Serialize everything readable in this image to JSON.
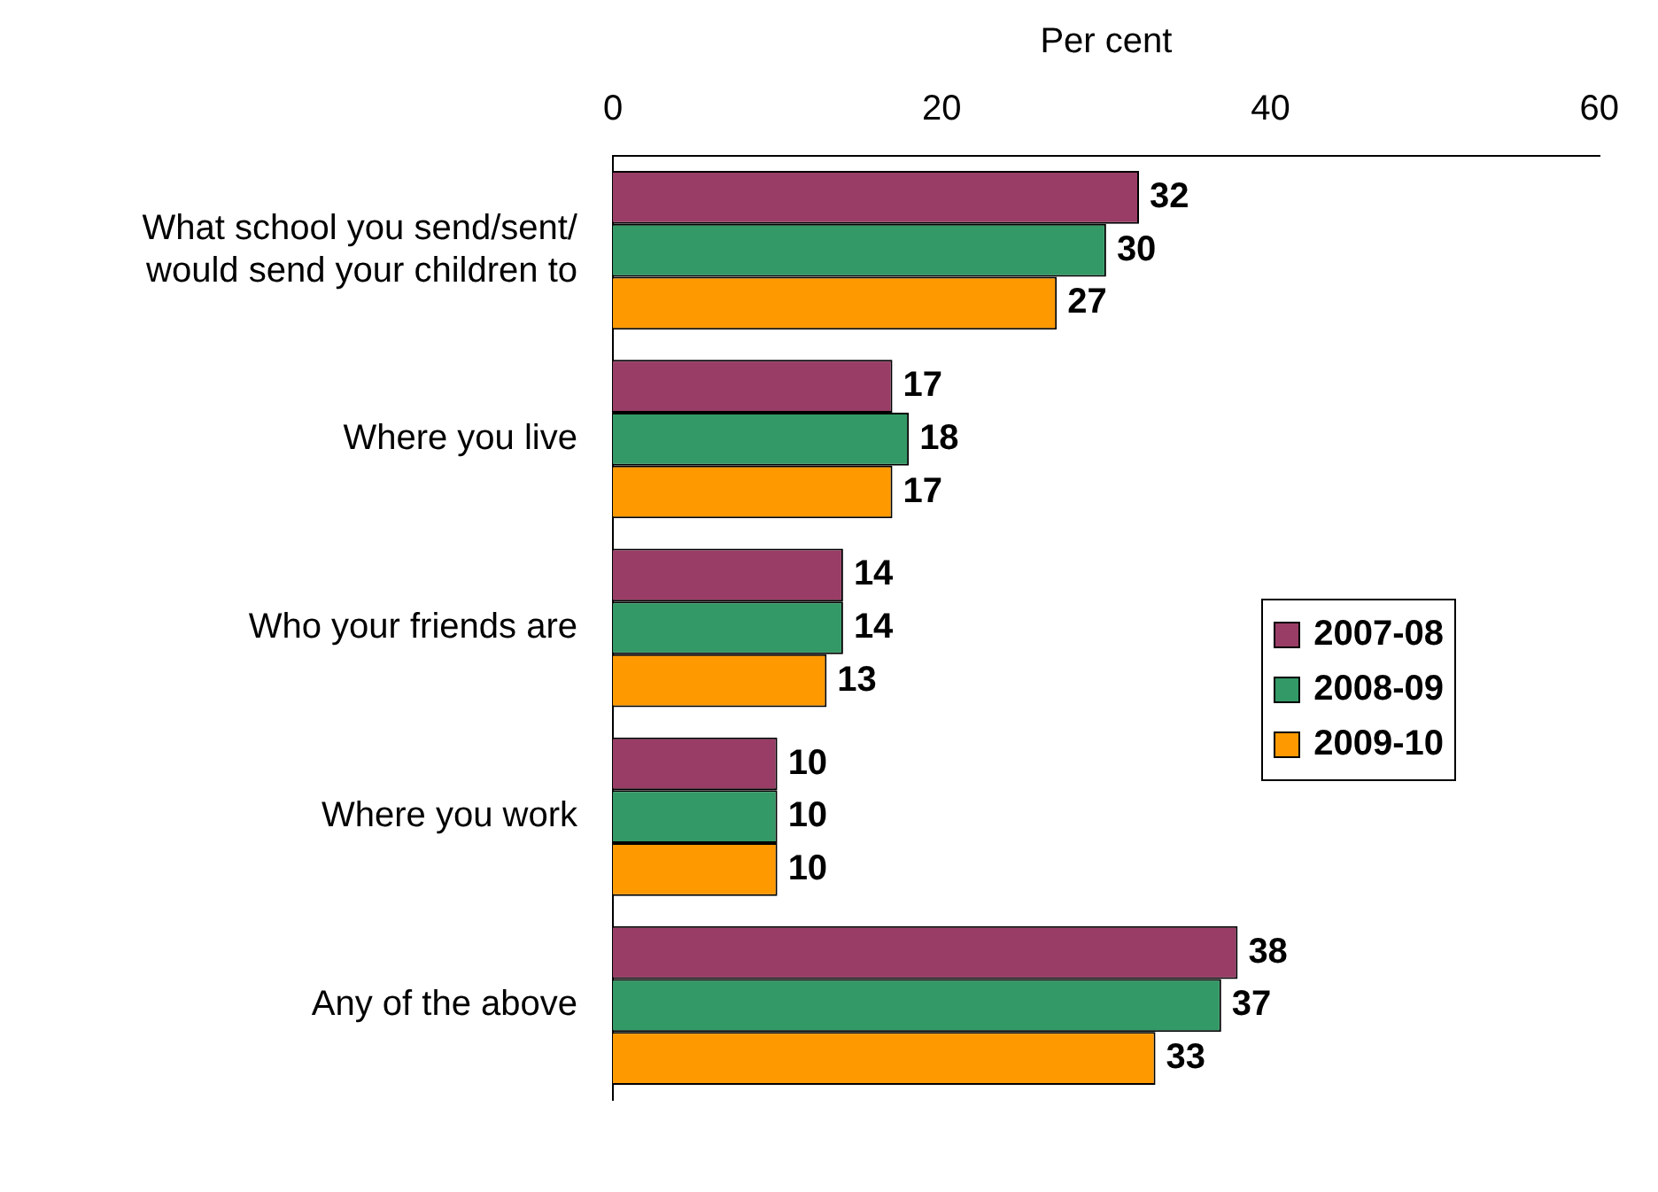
{
  "chart_data": {
    "type": "bar",
    "orientation": "horizontal",
    "xlabel": "Per cent",
    "categories": [
      "What school you send/sent/ would send your children to",
      "Where you live",
      "Who your friends are",
      "Where you work",
      "Any of the above"
    ],
    "series": [
      {
        "name": "2007-08",
        "color": "#993d66",
        "values": [
          32,
          17,
          14,
          10,
          38
        ]
      },
      {
        "name": "2008-09",
        "color": "#339966",
        "values": [
          30,
          18,
          14,
          10,
          37
        ]
      },
      {
        "name": "2009-10",
        "color": "#ff9900",
        "values": [
          27,
          17,
          13,
          10,
          33
        ]
      }
    ],
    "xlim": [
      0,
      60
    ],
    "xticks": [
      0,
      20,
      40,
      60
    ],
    "data_labels": true,
    "grid": false,
    "legend": "right"
  }
}
